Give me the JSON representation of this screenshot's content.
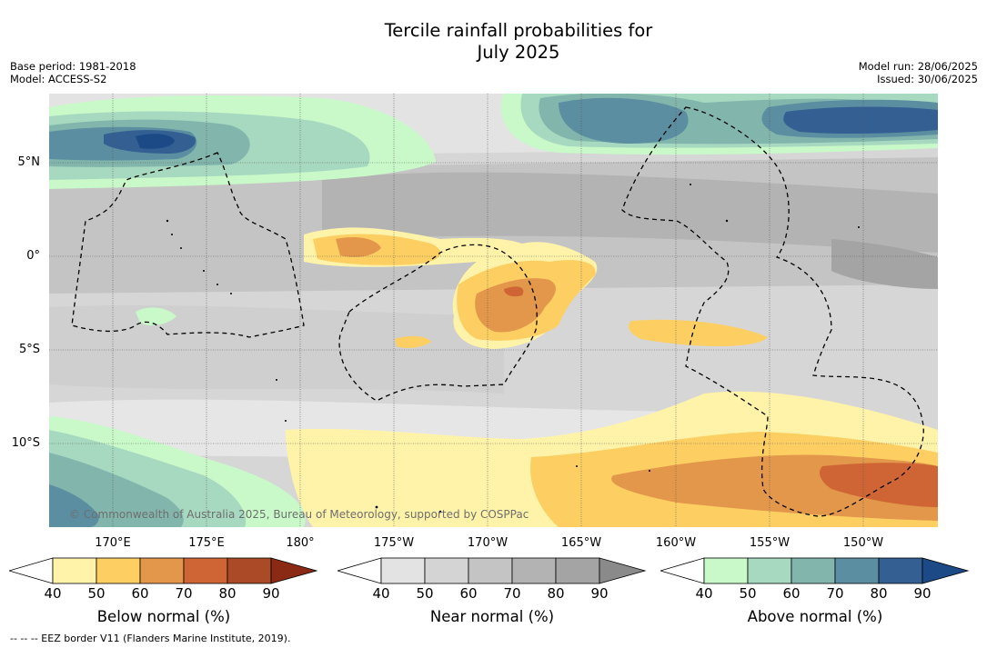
{
  "title_line1": "Tercile rainfall probabilities for",
  "title_line2": "July 2025",
  "base_period": "Base period: 1981-2018",
  "model": "Model: ACCESS-S2",
  "model_run": "Model run: 28/06/2025",
  "issued": "Issued: 30/06/2025",
  "lat_labels": [
    "5°N",
    "0°",
    "5°S",
    "10°S"
  ],
  "lon_labels": [
    "170°E",
    "175°E",
    "180°",
    "175°W",
    "170°W",
    "165°W",
    "160°W",
    "155°W",
    "150°W"
  ],
  "copyright": "© Commonwealth of Australia 2025, Bureau of Meteorology, supported by COSPPac",
  "colorbars": {
    "below": {
      "title": "Below normal (%)",
      "ticks": [
        "40",
        "50",
        "60",
        "70",
        "80",
        "90"
      ],
      "colors": [
        "#fff3a9",
        "#fdcf63",
        "#e2974a",
        "#cf6534",
        "#ab4a26",
        "#8a2a14"
      ]
    },
    "near": {
      "title": "Near normal (%)",
      "ticks": [
        "40",
        "50",
        "60",
        "70",
        "80",
        "90"
      ],
      "colors": [
        "#e3e3e3",
        "#d4d4d4",
        "#c4c4c4",
        "#b3b3b3",
        "#a4a4a4",
        "#8a8a8a"
      ]
    },
    "above": {
      "title": "Above normal (%)",
      "ticks": [
        "40",
        "50",
        "60",
        "70",
        "80",
        "90"
      ],
      "colors": [
        "#c9f9c9",
        "#a7d9c0",
        "#82b6ad",
        "#5b8ea0",
        "#345f93",
        "#1b4a86"
      ]
    }
  },
  "eez_legend": "--  --  -- EEZ border V11 (Flanders Marine Institute, 2019)."
}
